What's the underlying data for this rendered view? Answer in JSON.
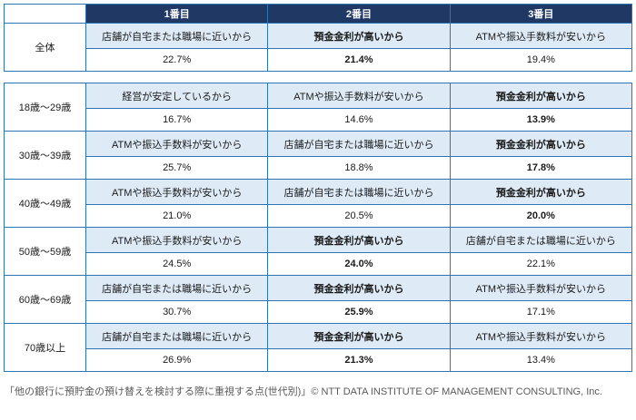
{
  "header": {
    "columns": [
      "1番目",
      "2番目",
      "3番目"
    ]
  },
  "overall": {
    "label": "全体",
    "cells": [
      {
        "reason": "店舗が自宅または職場に近いから",
        "value": "22.7%",
        "highlight": false
      },
      {
        "reason": "預金金利が高いから",
        "value": "21.4%",
        "highlight": true
      },
      {
        "reason": "ATMや振込手数料が安いから",
        "value": "19.4%",
        "highlight": false
      }
    ]
  },
  "age_groups": [
    {
      "label": "18歳～29歳",
      "cells": [
        {
          "reason": "経営が安定しているから",
          "value": "16.7%",
          "highlight": false
        },
        {
          "reason": "ATMや振込手数料が安いから",
          "value": "14.6%",
          "highlight": false
        },
        {
          "reason": "預金金利が高いから",
          "value": "13.9%",
          "highlight": true
        }
      ]
    },
    {
      "label": "30歳～39歳",
      "cells": [
        {
          "reason": "ATMや振込手数料が安いから",
          "value": "25.7%",
          "highlight": false
        },
        {
          "reason": "店舗が自宅または職場に近いから",
          "value": "18.8%",
          "highlight": false
        },
        {
          "reason": "預金金利が高いから",
          "value": "17.8%",
          "highlight": true
        }
      ]
    },
    {
      "label": "40歳～49歳",
      "cells": [
        {
          "reason": "ATMや振込手数料が安いから",
          "value": "21.0%",
          "highlight": false
        },
        {
          "reason": "店舗が自宅または職場に近いから",
          "value": "20.5%",
          "highlight": false
        },
        {
          "reason": "預金金利が高いから",
          "value": "20.0%",
          "highlight": true
        }
      ]
    },
    {
      "label": "50歳～59歳",
      "cells": [
        {
          "reason": "ATMや振込手数料が安いから",
          "value": "24.5%",
          "highlight": false
        },
        {
          "reason": "預金金利が高いから",
          "value": "24.0%",
          "highlight": true
        },
        {
          "reason": "店舗が自宅または職場に近いから",
          "value": "22.1%",
          "highlight": false
        }
      ]
    },
    {
      "label": "60歳～69歳",
      "cells": [
        {
          "reason": "店舗が自宅または職場に近いから",
          "value": "30.7%",
          "highlight": false
        },
        {
          "reason": "預金金利が高いから",
          "value": "25.9%",
          "highlight": true
        },
        {
          "reason": "ATMや振込手数料が安いから",
          "value": "17.1%",
          "highlight": false
        }
      ]
    },
    {
      "label": "70歳以上",
      "cells": [
        {
          "reason": "店舗が自宅または職場に近いから",
          "value": "26.9%",
          "highlight": false
        },
        {
          "reason": "預金金利が高いから",
          "value": "21.3%",
          "highlight": true
        },
        {
          "reason": "ATMや振込手数料が安いから",
          "value": "13.4%",
          "highlight": false
        }
      ]
    }
  ],
  "footer": {
    "caption": "「他の銀行に預貯金の預け替えを検討する際に重視する点(世代別)」© NTT DATA INSTITUTE OF MANAGEMENT CONSULTING, Inc."
  },
  "colors": {
    "header_bg": "#1F3864",
    "reason_bg": "#DEEBF7",
    "border": "#2E75B6",
    "highlight_border": "#FFC000"
  },
  "chart_data": {
    "type": "table",
    "title": "他の銀行に預貯金の預け替えを検討する際に重視する点(世代別)",
    "columns": [
      "1番目",
      "2番目",
      "3番目"
    ],
    "highlighted_reason": "預金金利が高いから",
    "rows": [
      {
        "group": "全体",
        "ranks": [
          {
            "rank": 1,
            "reason": "店舗が自宅または職場に近いから",
            "percent": 22.7
          },
          {
            "rank": 2,
            "reason": "預金金利が高いから",
            "percent": 21.4
          },
          {
            "rank": 3,
            "reason": "ATMや振込手数料が安いから",
            "percent": 19.4
          }
        ]
      },
      {
        "group": "18歳～29歳",
        "ranks": [
          {
            "rank": 1,
            "reason": "経営が安定しているから",
            "percent": 16.7
          },
          {
            "rank": 2,
            "reason": "ATMや振込手数料が安いから",
            "percent": 14.6
          },
          {
            "rank": 3,
            "reason": "預金金利が高いから",
            "percent": 13.9
          }
        ]
      },
      {
        "group": "30歳～39歳",
        "ranks": [
          {
            "rank": 1,
            "reason": "ATMや振込手数料が安いから",
            "percent": 25.7
          },
          {
            "rank": 2,
            "reason": "店舗が自宅または職場に近いから",
            "percent": 18.8
          },
          {
            "rank": 3,
            "reason": "預金金利が高いから",
            "percent": 17.8
          }
        ]
      },
      {
        "group": "40歳～49歳",
        "ranks": [
          {
            "rank": 1,
            "reason": "ATMや振込手数料が安いから",
            "percent": 21.0
          },
          {
            "rank": 2,
            "reason": "店舗が自宅または職場に近いから",
            "percent": 20.5
          },
          {
            "rank": 3,
            "reason": "預金金利が高いから",
            "percent": 20.0
          }
        ]
      },
      {
        "group": "50歳～59歳",
        "ranks": [
          {
            "rank": 1,
            "reason": "ATMや振込手数料が安いから",
            "percent": 24.5
          },
          {
            "rank": 2,
            "reason": "預金金利が高いから",
            "percent": 24.0
          },
          {
            "rank": 3,
            "reason": "店舗が自宅または職場に近いから",
            "percent": 22.1
          }
        ]
      },
      {
        "group": "60歳～69歳",
        "ranks": [
          {
            "rank": 1,
            "reason": "店舗が自宅または職場に近いから",
            "percent": 30.7
          },
          {
            "rank": 2,
            "reason": "預金金利が高いから",
            "percent": 25.9
          },
          {
            "rank": 3,
            "reason": "ATMや振込手数料が安いから",
            "percent": 17.1
          }
        ]
      },
      {
        "group": "70歳以上",
        "ranks": [
          {
            "rank": 1,
            "reason": "店舗が自宅または職場に近いから",
            "percent": 26.9
          },
          {
            "rank": 2,
            "reason": "預金金利が高いから",
            "percent": 21.3
          },
          {
            "rank": 3,
            "reason": "ATMや振込手数料が安いから",
            "percent": 13.4
          }
        ]
      }
    ]
  }
}
